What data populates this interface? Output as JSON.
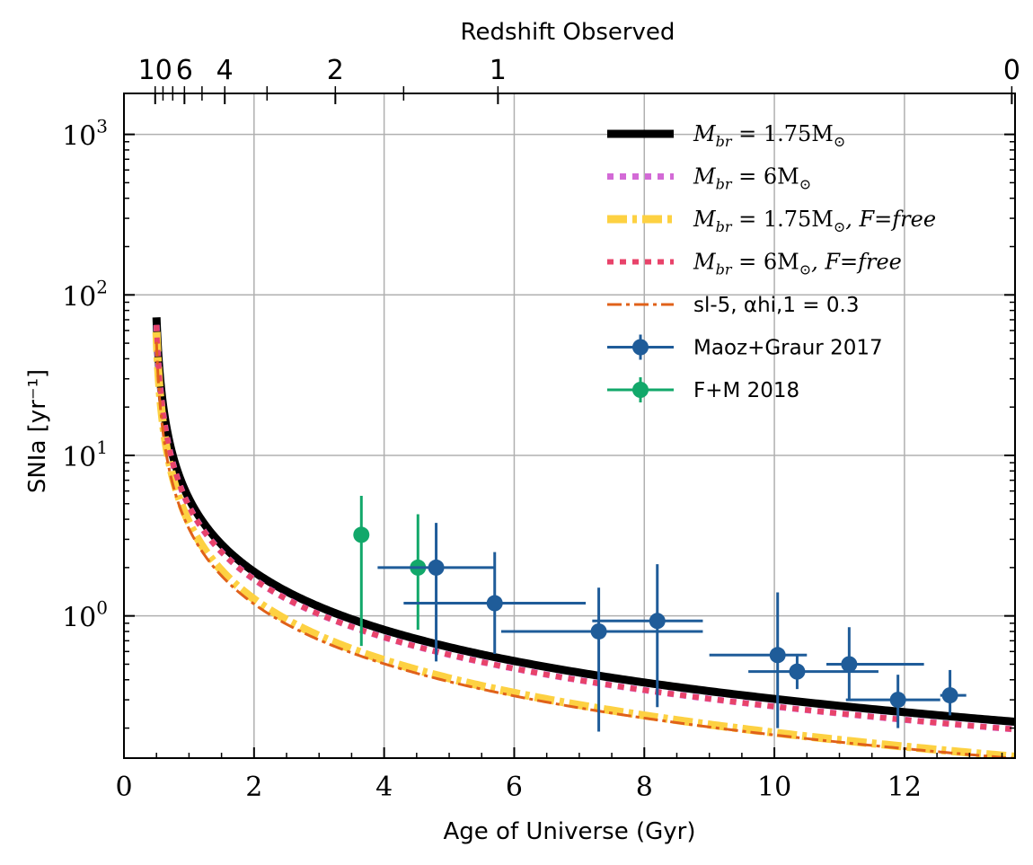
{
  "chart_data": {
    "type": "line",
    "xlabel": "Age of Universe (Gyr)",
    "ylabel": "SNIa [yr⁻¹]",
    "top_xlabel": "Redshift Observed",
    "xlim": [
      0,
      13.7
    ],
    "ylim": [
      0.13,
      1800
    ],
    "yscale": "log",
    "grid": true,
    "legend_position": "top-right",
    "x_ticks": [
      0,
      2,
      4,
      6,
      8,
      10,
      12
    ],
    "x_tick_labels": [
      "0",
      "2",
      "4",
      "6",
      "8",
      "10",
      "12"
    ],
    "y_ticks": [
      1,
      10,
      100,
      1000
    ],
    "y_tick_labels": [
      [
        "10",
        "0"
      ],
      [
        "10",
        "1"
      ],
      [
        "10",
        "2"
      ],
      [
        "10",
        "3"
      ]
    ],
    "top_ticks": [
      {
        "age": 0.48,
        "label": "10"
      },
      {
        "age": 0.93,
        "label": "6"
      },
      {
        "age": 1.55,
        "label": "4"
      },
      {
        "age": 3.25,
        "label": "2"
      },
      {
        "age": 5.75,
        "label": "1"
      },
      {
        "age": 13.65,
        "label": "0"
      }
    ],
    "top_extra_ticks": [
      0.48,
      0.6,
      0.75,
      0.93,
      1.2,
      1.55,
      2.2,
      3.25,
      4.3,
      5.75,
      13.65
    ],
    "series": [
      {
        "name": "M_br = 1.75 M_sun",
        "legend": [
          "M",
          "br",
          " = 1.75M",
          "⊙",
          ""
        ],
        "color": "#000000",
        "style": "solid",
        "width": 9,
        "A": 2.9,
        "p": 1.0
      },
      {
        "name": "M_br = 6 M_sun",
        "legend": [
          "M",
          "br",
          " = 6M",
          "⊙",
          ""
        ],
        "color": "#d36ad6",
        "style": "dotted",
        "width": 7,
        "A": 2.6,
        "p": 1.0
      },
      {
        "name": "M_br = 1.75 M_sun, F=free",
        "legend": [
          "M",
          "br",
          " = 1.75M",
          "⊙",
          ", F=free"
        ],
        "color": "#fdd142",
        "style": "dashdot",
        "width": 9,
        "A": 2.0,
        "p": 1.05
      },
      {
        "name": "M_br = 6 M_sun, F=free",
        "legend": [
          "M",
          "br",
          " = 6M",
          "⊙",
          ", F=free"
        ],
        "color": "#e8436a",
        "style": "dotted",
        "width": 6,
        "A": 2.6,
        "p": 1.0
      },
      {
        "name": "sl-5, alpha_hi,1 = 0.3",
        "legend_text": "sl-5, αhi,1 = 0.3",
        "color": "#e0611a",
        "style": "dashdot-thin",
        "width": 3,
        "A": 1.85,
        "p": 1.03
      }
    ],
    "maoz_graur_2017": {
      "label": "Maoz+Graur 2017",
      "color": "#1f5c99",
      "points": [
        {
          "x": 4.8,
          "y": 2.0,
          "xlo": 3.9,
          "xhi": 5.7,
          "ylo": 0.52,
          "yhi": 3.8
        },
        {
          "x": 5.7,
          "y": 1.2,
          "xlo": 4.3,
          "xhi": 7.1,
          "ylo": 0.58,
          "yhi": 2.5
        },
        {
          "x": 7.3,
          "y": 0.8,
          "xlo": 5.8,
          "xhi": 8.9,
          "ylo": 0.19,
          "yhi": 1.5
        },
        {
          "x": 8.2,
          "y": 0.93,
          "xlo": 7.2,
          "xhi": 8.9,
          "ylo": 0.27,
          "yhi": 2.1
        },
        {
          "x": 10.05,
          "y": 0.57,
          "xlo": 9.0,
          "xhi": 10.5,
          "ylo": 0.2,
          "yhi": 1.4
        },
        {
          "x": 10.35,
          "y": 0.45,
          "xlo": 9.6,
          "xhi": 11.6,
          "ylo": 0.35,
          "yhi": 0.58
        },
        {
          "x": 11.15,
          "y": 0.5,
          "xlo": 10.8,
          "xhi": 12.3,
          "ylo": 0.3,
          "yhi": 0.85
        },
        {
          "x": 11.9,
          "y": 0.3,
          "xlo": 11.1,
          "xhi": 12.55,
          "ylo": 0.2,
          "yhi": 0.43
        },
        {
          "x": 12.7,
          "y": 0.32,
          "xlo": 12.55,
          "xhi": 12.95,
          "ylo": 0.24,
          "yhi": 0.46
        }
      ]
    },
    "fm_2018": {
      "label": "F+M 2018",
      "color": "#12a86a",
      "points": [
        {
          "x": 3.65,
          "y": 3.2,
          "ylo": 0.65,
          "yhi": 5.6
        },
        {
          "x": 4.52,
          "y": 2.0,
          "ylo": 0.82,
          "yhi": 4.3
        }
      ]
    }
  }
}
